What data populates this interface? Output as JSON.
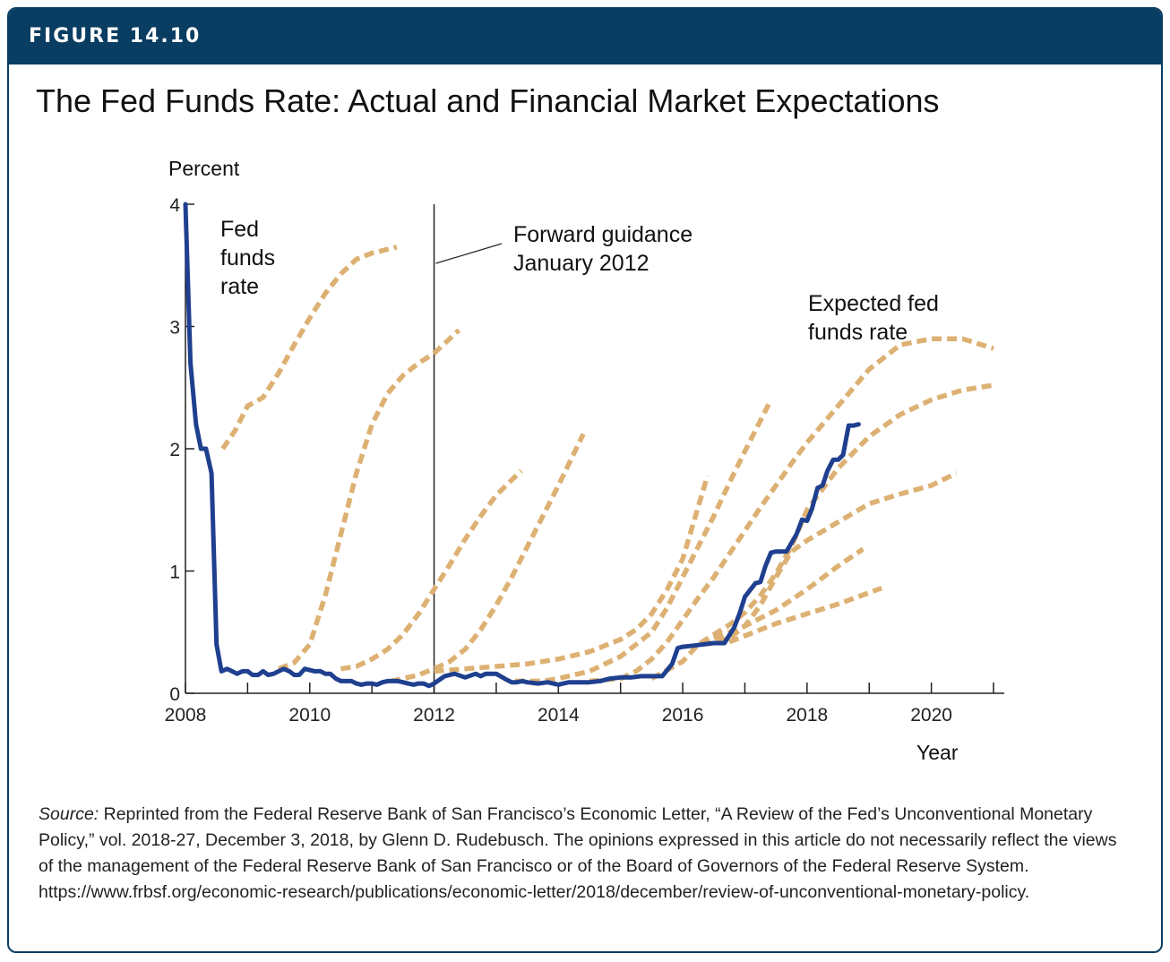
{
  "figure_label": "FIGURE 14.10",
  "title": "The Fed Funds Rate: Actual and Financial Market Expectations",
  "source": {
    "label": "Source:",
    "text": " Reprinted from the Federal Reserve Bank of San Francisco’s Economic Letter, “A Review of the Fed’s Unconventional Monetary Policy,” vol. 2018-27, December 3, 2018, by Glenn D. Rudebusch. The opinions expressed in this article do not necessarily reflect the views of the management of the Federal Reserve Bank of San Francisco or of the Board of Governors of the Federal Reserve System. https://www.frbsf.org/economic-research/publications/economic-letter/2018/december/review-of-unconventional-monetary-policy."
  },
  "colors": {
    "header": "#0a3d62",
    "actual": "#1f3f8f",
    "expected": "#ddb173"
  },
  "chart_data": {
    "type": "line",
    "ylabel": "Percent",
    "xlabel": "Year",
    "xlim": [
      2008,
      2021
    ],
    "ylim": [
      0,
      4
    ],
    "x_ticks": [
      2008,
      2010,
      2012,
      2014,
      2016,
      2018,
      2020
    ],
    "y_ticks": [
      0,
      1,
      2,
      3,
      4
    ],
    "grid": false,
    "annotations": {
      "actual_label": [
        "Fed",
        "funds",
        "rate"
      ],
      "expected_label": [
        "Expected fed",
        "funds rate"
      ],
      "guidance_label": [
        "Forward guidance",
        "January 2012"
      ],
      "guidance_x": 2012
    },
    "series": [
      {
        "name": "Fed funds rate",
        "style": "solid",
        "x": [
          2008.0,
          2008.08,
          2008.17,
          2008.25,
          2008.33,
          2008.42,
          2008.5,
          2008.58,
          2008.67,
          2008.75,
          2008.83,
          2008.92,
          2009.0,
          2009.08,
          2009.17,
          2009.25,
          2009.33,
          2009.42,
          2009.5,
          2009.58,
          2009.67,
          2009.75,
          2009.83,
          2009.92,
          2010.0,
          2010.08,
          2010.17,
          2010.25,
          2010.33,
          2010.42,
          2010.5,
          2010.58,
          2010.67,
          2010.75,
          2010.83,
          2010.92,
          2011.0,
          2011.08,
          2011.17,
          2011.25,
          2011.33,
          2011.42,
          2011.5,
          2011.58,
          2011.67,
          2011.75,
          2011.83,
          2011.92,
          2012.0,
          2012.17,
          2012.33,
          2012.5,
          2012.67,
          2012.75,
          2012.83,
          2013.0,
          2013.17,
          2013.25,
          2013.33,
          2013.42,
          2013.5,
          2013.67,
          2013.83,
          2014.0,
          2014.08,
          2014.17,
          2014.33,
          2014.5,
          2014.67,
          2014.83,
          2015.0,
          2015.17,
          2015.33,
          2015.5,
          2015.67,
          2015.83,
          2015.92,
          2016.0,
          2016.17,
          2016.33,
          2016.5,
          2016.67,
          2016.83,
          2016.92,
          2017.0,
          2017.17,
          2017.25,
          2017.33,
          2017.42,
          2017.5,
          2017.58,
          2017.67,
          2017.83,
          2017.92,
          2018.0,
          2018.08,
          2018.17,
          2018.25,
          2018.33,
          2018.42,
          2018.5,
          2018.58,
          2018.67,
          2018.75,
          2018.83
        ],
        "y": [
          4.0,
          2.7,
          2.2,
          2.0,
          2.0,
          1.8,
          0.4,
          0.18,
          0.2,
          0.18,
          0.16,
          0.18,
          0.18,
          0.15,
          0.15,
          0.18,
          0.15,
          0.16,
          0.18,
          0.2,
          0.18,
          0.15,
          0.15,
          0.2,
          0.19,
          0.18,
          0.18,
          0.16,
          0.16,
          0.12,
          0.1,
          0.1,
          0.1,
          0.08,
          0.07,
          0.08,
          0.08,
          0.07,
          0.09,
          0.1,
          0.1,
          0.1,
          0.09,
          0.08,
          0.07,
          0.08,
          0.08,
          0.06,
          0.08,
          0.14,
          0.16,
          0.13,
          0.16,
          0.14,
          0.16,
          0.16,
          0.11,
          0.09,
          0.09,
          0.1,
          0.09,
          0.08,
          0.09,
          0.07,
          0.08,
          0.09,
          0.09,
          0.09,
          0.1,
          0.12,
          0.13,
          0.13,
          0.14,
          0.14,
          0.14,
          0.24,
          0.37,
          0.38,
          0.39,
          0.4,
          0.41,
          0.41,
          0.54,
          0.66,
          0.79,
          0.9,
          0.91,
          1.04,
          1.15,
          1.16,
          1.16,
          1.16,
          1.3,
          1.42,
          1.41,
          1.51,
          1.68,
          1.7,
          1.82,
          1.91,
          1.91,
          1.95,
          2.19,
          2.19,
          2.2
        ]
      },
      {
        "name": "",
        "style": "dashed",
        "x": [
          2008.6,
          2008.8,
          2009.0,
          2009.25,
          2009.5,
          2009.75,
          2010.0,
          2010.25,
          2010.5,
          2010.75,
          2011.0,
          2011.4
        ],
        "y": [
          2.0,
          2.15,
          2.35,
          2.42,
          2.62,
          2.85,
          3.07,
          3.27,
          3.43,
          3.55,
          3.6,
          3.65
        ]
      },
      {
        "name": "",
        "style": "dashed",
        "x": [
          2009.5,
          2009.75,
          2010.0,
          2010.25,
          2010.5,
          2010.75,
          2011.0,
          2011.25,
          2011.5,
          2011.75,
          2012.0,
          2012.4
        ],
        "y": [
          0.2,
          0.25,
          0.4,
          0.8,
          1.3,
          1.8,
          2.2,
          2.45,
          2.6,
          2.7,
          2.78,
          2.97
        ]
      },
      {
        "name": "",
        "style": "dashed",
        "x": [
          2010.5,
          2010.75,
          2011.0,
          2011.25,
          2011.5,
          2011.75,
          2012.0,
          2012.25,
          2012.5,
          2012.75,
          2013.0,
          2013.4
        ],
        "y": [
          0.2,
          0.22,
          0.28,
          0.36,
          0.48,
          0.65,
          0.85,
          1.05,
          1.26,
          1.45,
          1.62,
          1.82
        ]
      },
      {
        "name": "",
        "style": "dashed",
        "x": [
          2011.3,
          2011.5,
          2011.75,
          2012.0,
          2012.25,
          2012.5,
          2012.75,
          2013.0,
          2013.25,
          2013.5,
          2013.75,
          2014.0,
          2014.4
        ],
        "y": [
          0.1,
          0.12,
          0.15,
          0.2,
          0.26,
          0.36,
          0.52,
          0.72,
          0.95,
          1.2,
          1.45,
          1.7,
          2.12
        ]
      },
      {
        "name": "",
        "style": "dashed",
        "x": [
          2012.0,
          2012.5,
          2013.0,
          2013.5,
          2014.0,
          2014.5,
          2015.0,
          2015.25,
          2015.5,
          2015.75,
          2016.0,
          2016.4
        ],
        "y": [
          0.18,
          0.2,
          0.22,
          0.24,
          0.28,
          0.34,
          0.44,
          0.52,
          0.65,
          0.85,
          1.1,
          1.78
        ]
      },
      {
        "name": "",
        "style": "dashed",
        "x": [
          2013.3,
          2013.75,
          2014.0,
          2014.5,
          2015.0,
          2015.5,
          2015.75,
          2016.0,
          2016.25,
          2016.5,
          2016.75,
          2017.0,
          2017.4
        ],
        "y": [
          0.1,
          0.1,
          0.12,
          0.18,
          0.3,
          0.5,
          0.7,
          0.95,
          1.2,
          1.45,
          1.72,
          1.98,
          2.38
        ]
      },
      {
        "name": "",
        "style": "dashed",
        "x": [
          2014.5,
          2015.0,
          2015.25,
          2015.5,
          2015.75,
          2016.0,
          2016.25,
          2016.5,
          2016.75,
          2017.0,
          2017.25,
          2017.5,
          2017.75,
          2018.0,
          2018.5,
          2019.0,
          2019.5,
          2020.0,
          2020.5,
          2021.0
        ],
        "y": [
          0.1,
          0.12,
          0.18,
          0.28,
          0.42,
          0.6,
          0.78,
          0.95,
          1.14,
          1.33,
          1.52,
          1.7,
          1.88,
          2.05,
          2.35,
          2.65,
          2.85,
          2.9,
          2.9,
          2.82
        ]
      },
      {
        "name": "",
        "style": "dashed",
        "x": [
          2015.5,
          2016.0,
          2016.25,
          2016.5,
          2016.75,
          2017.0,
          2017.25,
          2017.5,
          2017.75,
          2018.0,
          2018.5,
          2019.0,
          2019.5,
          2020.0,
          2020.5,
          2021.0
        ],
        "y": [
          0.12,
          0.26,
          0.4,
          0.48,
          0.56,
          0.66,
          0.8,
          0.98,
          1.2,
          1.5,
          1.84,
          2.1,
          2.28,
          2.4,
          2.48,
          2.52
        ]
      },
      {
        "name": "",
        "style": "dashed",
        "x": [
          2016.3,
          2016.75,
          2017.0,
          2017.25,
          2017.5,
          2017.75,
          2018.0,
          2018.5,
          2019.0,
          2019.5,
          2020.0,
          2020.4
        ],
        "y": [
          0.4,
          0.45,
          0.55,
          0.72,
          0.95,
          1.16,
          1.25,
          1.4,
          1.55,
          1.63,
          1.7,
          1.8
        ]
      },
      {
        "name": "",
        "style": "dashed",
        "x": [
          2016.5,
          2017.0,
          2017.5,
          2018.0,
          2018.5,
          2018.9
        ],
        "y": [
          0.45,
          0.55,
          0.68,
          0.85,
          1.04,
          1.18
        ]
      },
      {
        "name": "",
        "style": "dashed",
        "x": [
          2016.75,
          2017.0,
          2017.5,
          2018.0,
          2018.5,
          2019.2
        ],
        "y": [
          0.42,
          0.47,
          0.57,
          0.65,
          0.73,
          0.86
        ]
      }
    ]
  }
}
